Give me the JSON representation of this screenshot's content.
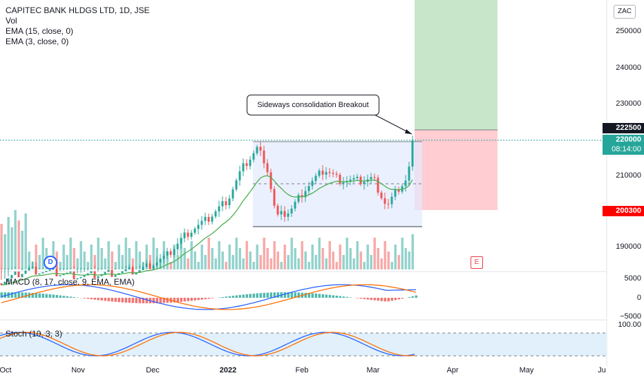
{
  "header": {
    "symbol": "CAPITEC BANK HLDGS LTD, 1D, JSE",
    "indicators": [
      "Vol",
      "EMA (15, close, 0)",
      "EMA (3, close, 0)"
    ]
  },
  "currency_button": "ZAC",
  "price_axis": {
    "ticks": [
      "250000",
      "240000",
      "230000",
      "210000",
      "190000"
    ]
  },
  "price_tags": {
    "target": "222500",
    "current": "220000",
    "countdown": "08:14:00",
    "stop": "200300"
  },
  "macd": {
    "label": "MACD (8, 17, close, 9, EMA, EMA)",
    "ticks": [
      "5000",
      "0",
      "−5000"
    ]
  },
  "stoch": {
    "label": "Stoch (10, 3, 3)",
    "ticks": [
      "100.00"
    ]
  },
  "time_axis": {
    "labels": [
      "Oct",
      "Nov",
      "Dec",
      "2022",
      "Feb",
      "Mar",
      "Apr",
      "May",
      "Ju"
    ]
  },
  "annotation": "Sideways consolidation Breakout",
  "badges": {
    "dividend": "D",
    "earnings": "E"
  },
  "colors": {
    "up": "#26a69a",
    "down": "#ef5350",
    "ema_slow": "#4caf50",
    "ema_fast": "#f23645",
    "macd_line": "#2962ff",
    "signal_line": "#ff6d00",
    "target_zone": "#c8e6c9",
    "stop_zone": "#ffcdd2",
    "range_box": "#e3eaff"
  }
}
